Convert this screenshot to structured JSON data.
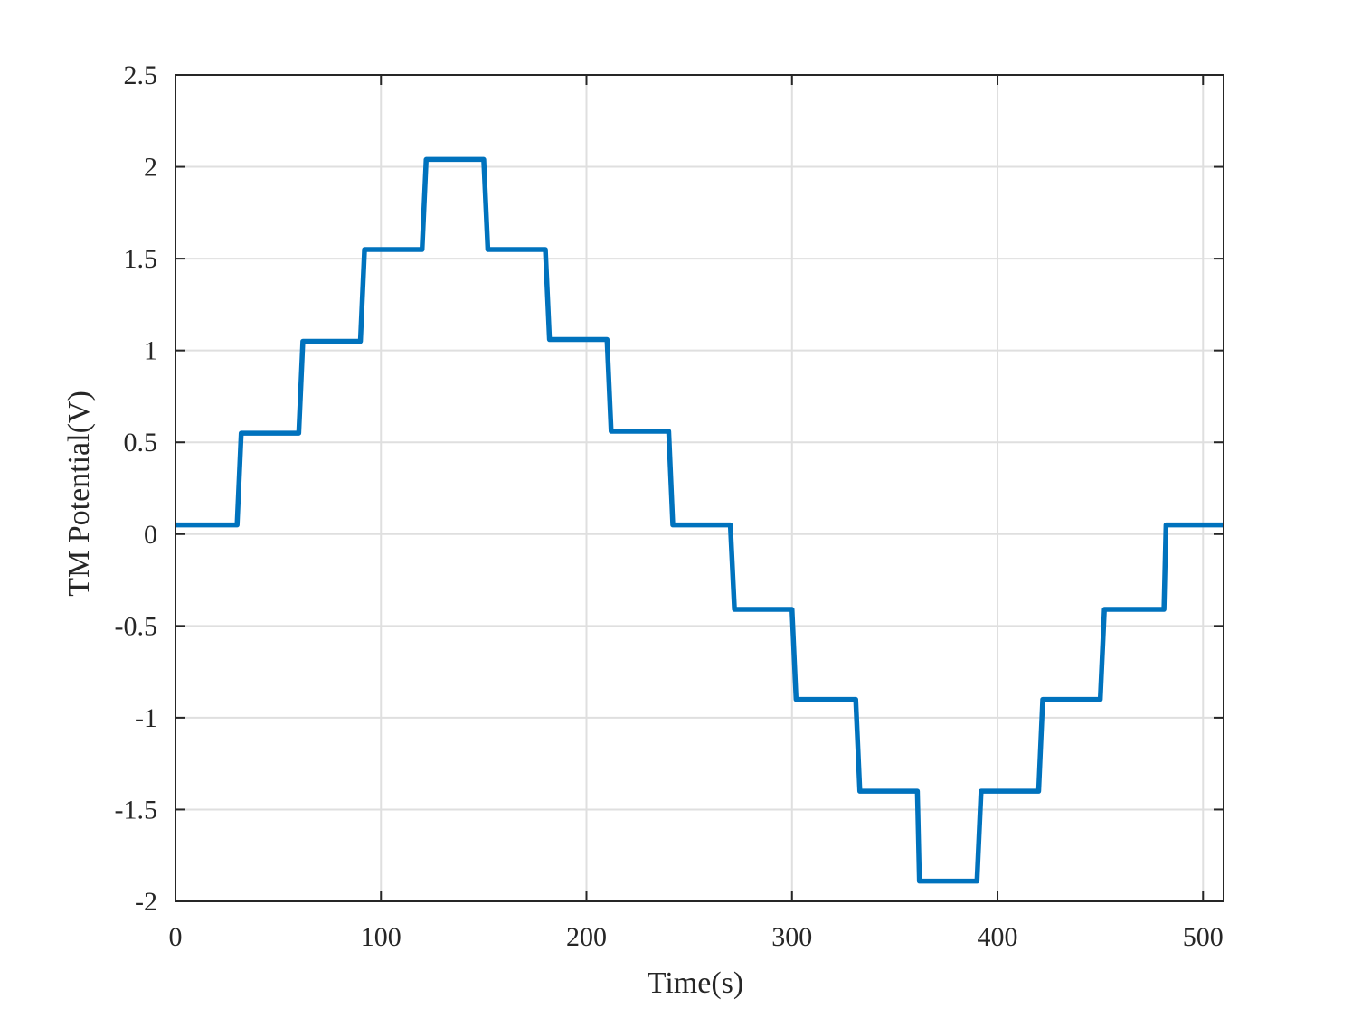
{
  "chart_data": {
    "type": "line",
    "xlabel": "Time(s)",
    "ylabel": "TM Potential(V)",
    "x": [
      0,
      30,
      32,
      60,
      62,
      90,
      92,
      120,
      122,
      150,
      152,
      180,
      182,
      210,
      212,
      240,
      242,
      270,
      272,
      300,
      302,
      331,
      333,
      361,
      362,
      390,
      392,
      420,
      422,
      450,
      452,
      481,
      482,
      510
    ],
    "values": [
      0.05,
      0.05,
      0.55,
      0.55,
      1.05,
      1.05,
      1.55,
      1.55,
      2.04,
      2.04,
      1.55,
      1.55,
      1.06,
      1.06,
      0.56,
      0.56,
      0.05,
      0.05,
      -0.41,
      -0.41,
      -0.9,
      -0.9,
      -1.4,
      -1.4,
      -1.89,
      -1.89,
      -1.4,
      -1.4,
      -0.9,
      -0.9,
      -0.41,
      -0.41,
      0.05,
      0.05
    ],
    "color": "#0072bd",
    "xlim": [
      0,
      510
    ],
    "xticks": [
      0,
      100,
      200,
      300,
      400,
      500
    ],
    "ylim": [
      -2,
      2.5
    ],
    "yticks": [
      -2,
      -1.5,
      -1,
      -0.5,
      0,
      0.5,
      1,
      1.5,
      2,
      2.5
    ],
    "grid": true
  }
}
